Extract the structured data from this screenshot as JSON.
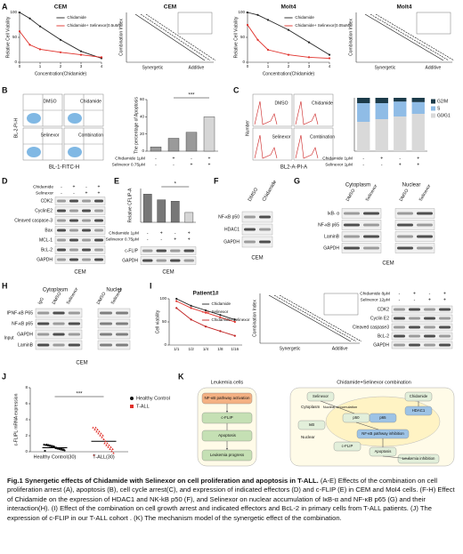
{
  "a": {
    "label": "A",
    "cem": {
      "type": "line",
      "title": "CEM",
      "x_label": "Concentration(Chidamide)",
      "y_label": "Relative Cell Viability",
      "x": [
        0,
        0.5,
        1,
        2,
        3,
        4
      ],
      "xlim": [
        0,
        4
      ],
      "xticks": [
        0,
        1,
        2,
        3,
        4
      ],
      "ylim": [
        0,
        100
      ],
      "yticks": [
        0,
        50,
        100
      ],
      "series": [
        {
          "name": "Chidamide",
          "color": "#222222",
          "values": [
            100,
            88,
            72,
            45,
            22,
            8
          ]
        },
        {
          "name": "Chidamide+ Selinexor(0.5uM)",
          "color": "#e0302a",
          "values": [
            62,
            35,
            26,
            20,
            15,
            10
          ]
        }
      ]
    },
    "cem_ci": {
      "title": "CEM",
      "y_label": "Combination Index",
      "left": "Synergetic",
      "right": "Additive"
    },
    "molt4": {
      "type": "line",
      "title": "Molt4",
      "x_label": "Concentration(Chidamide)",
      "y_label": "Relative Cell Viability",
      "x": [
        0,
        0.5,
        1,
        2,
        3,
        4
      ],
      "xlim": [
        0,
        4
      ],
      "xticks": [
        0,
        1,
        2,
        3,
        4
      ],
      "ylim": [
        0,
        100
      ],
      "yticks": [
        0,
        50,
        100
      ],
      "series": [
        {
          "name": "Chidamide",
          "color": "#222222",
          "values": [
            100,
            95,
            85,
            65,
            40,
            15
          ]
        },
        {
          "name": "Chidamide+ Selinexor(0.05uM)",
          "color": "#e0302a",
          "values": [
            75,
            45,
            25,
            15,
            10,
            8
          ]
        }
      ]
    },
    "molt4_ci": {
      "title": "Molt4",
      "y_label": "Combination Index",
      "left": "Synergetic",
      "right": "Additive"
    }
  },
  "b": {
    "label": "B",
    "y_axis": "BL-2-PI-H",
    "x_axis": "BL-1-FITC-H",
    "quadrants": [
      "DMSO",
      "Chidamide",
      "Selinexor",
      "Combination"
    ],
    "chart": {
      "type": "bar",
      "y_label": "The percentage of Apoptosis",
      "values": [
        5,
        15,
        22,
        40
      ],
      "color": "#9a9a9a",
      "ylim": [
        0,
        60
      ],
      "yticks": [
        0,
        20,
        40,
        60
      ],
      "significance": "***",
      "conditions": [
        {
          "name": "Chidamide 1μM",
          "signs": [
            "-",
            "+",
            "-",
            "+"
          ]
        },
        {
          "name": "Selinexor 0.75μM",
          "signs": [
            "-",
            "-",
            "+",
            "+"
          ]
        }
      ]
    }
  },
  "c": {
    "label": "C",
    "y_axis": "Number",
    "x_axis": "BL2-A-PI-A",
    "panels": [
      "DMSO",
      "Chidamide",
      "Selinexor",
      "Combination"
    ],
    "chart": {
      "type": "stacked_bar",
      "ylim": [
        0,
        100
      ],
      "series": [
        {
          "name": "G0/G1",
          "color": "#d9d9d9",
          "values": [
            55,
            60,
            65,
            70
          ]
        },
        {
          "name": "S",
          "color": "#8fbce6",
          "values": [
            35,
            30,
            28,
            22
          ]
        },
        {
          "name": "G2/M",
          "color": "#1c3b4a",
          "values": [
            10,
            10,
            7,
            8
          ]
        }
      ],
      "conditions": [
        {
          "name": "Chidamide 1μM",
          "signs": [
            "-",
            "+",
            "-",
            "+"
          ]
        },
        {
          "name": "Selinexor 1μM",
          "signs": [
            "-",
            "-",
            "+",
            "+"
          ]
        }
      ]
    }
  },
  "d": {
    "label": "D",
    "conditions": [
      {
        "name": "Chidamide",
        "signs": [
          "-",
          "+",
          "-",
          "+"
        ]
      },
      {
        "name": "Selinexor",
        "signs": [
          "-",
          "-",
          "+",
          "+"
        ]
      }
    ],
    "rows": [
      "CDK2",
      "CyclinE2",
      "Cleaved caspase-3",
      "Bax",
      "MCL-1",
      "BcL-2",
      "GAPDH"
    ],
    "cell": "CEM"
  },
  "e": {
    "label": "E",
    "chart": {
      "type": "bar",
      "y_label": "Relative CFLIP-A",
      "values": [
        1,
        0.8,
        0.75,
        0.35
      ],
      "color": "#777777",
      "ylim": [
        0,
        1.2
      ],
      "significance": "*"
    },
    "conditions": [
      {
        "name": "Chidamide 1μM",
        "signs": [
          "-",
          "+",
          "-",
          "+"
        ]
      },
      {
        "name": "Selinexor 0.75μM",
        "signs": [
          "-",
          "-",
          "+",
          "+"
        ]
      }
    ],
    "rows": [
      "c-FLIP",
      "GAPDH"
    ],
    "cell": "CEM"
  },
  "f": {
    "label": "F",
    "columns": [
      "DMSO",
      "Chidamide"
    ],
    "rows": [
      "NF-κB p50",
      "HDAC1",
      "GAPDH"
    ],
    "cell": "CEM"
  },
  "g": {
    "label": "G",
    "groups": [
      "Cytoplasm",
      "Nuclear"
    ],
    "columns": [
      "DMSO",
      "Selinexor",
      "DMSO",
      "Selinexor"
    ],
    "rows": [
      "IκB- α",
      "NF-κB p65",
      "LaminB",
      "GAPDH"
    ],
    "cell": "CEM"
  },
  "h": {
    "label": "H",
    "groups": [
      "Cytoplasm",
      "Nucler"
    ],
    "columns": [
      "IgG",
      "DMSO",
      "Selinexor",
      "DMSO",
      "Selinexor"
    ],
    "ip": "IP",
    "input": "Input",
    "rows": [
      "NF-κB P65",
      "NF-κB p65",
      "GAPDH",
      "LaminB"
    ],
    "cell": "CEM"
  },
  "i": {
    "label": "I",
    "chart": {
      "type": "line",
      "title": "Patient1#",
      "y_label": "Cell viability",
      "categories": [
        "1/1",
        "1/2",
        "1/4",
        "1/8",
        "1/16"
      ],
      "ylim": [
        0,
        100
      ],
      "yticks": [
        0,
        50,
        100
      ],
      "series": [
        {
          "name": "Chidamide",
          "color": "#222222",
          "values": [
            100,
            85,
            75,
            65,
            55
          ]
        },
        {
          "name": "Selinexor",
          "color": "#e0302a",
          "values": [
            95,
            80,
            70,
            60,
            50
          ]
        },
        {
          "name": "Chidamide+Selinexor",
          "color": "#c02020",
          "values": [
            80,
            55,
            40,
            30,
            20
          ]
        }
      ]
    },
    "ci": {
      "y_label": "Combination Index",
      "left": "Synergetic",
      "right": "Additive"
    },
    "conditions": [
      {
        "name": "Chidamide 8μM",
        "signs": [
          "-",
          "+",
          "-",
          "+"
        ]
      },
      {
        "name": "Selinexor 12μM",
        "signs": [
          "-",
          "-",
          "+",
          "+"
        ]
      }
    ],
    "rows": [
      "CDK2",
      "Cyclin E2",
      "Cleaved caspase3",
      "BcL-2",
      "GAPDH"
    ]
  },
  "j": {
    "label": "J",
    "chart": {
      "type": "scatter_mean",
      "y_label": "c-FLIPL mRNA expression",
      "categories": [
        "Healthy Control(30)",
        "T-ALL(30)"
      ],
      "values": [
        0.5,
        1.3
      ],
      "colors": [
        "#111111",
        "#e0302a"
      ],
      "ylim": [
        0,
        8
      ],
      "yticks": [
        0,
        2,
        4,
        6,
        8
      ],
      "significance": "***"
    },
    "legend": [
      "Healthy Control",
      "T-ALL"
    ]
  },
  "k": {
    "label": "K",
    "left_title": "Leukemia cells",
    "right_title": "Chidamide+Selinexor combination",
    "left_nodes": [
      "NF-κB pathway activation",
      "c-FLIP",
      "Apoptosis",
      "Leukemia progress"
    ],
    "right_nodes": [
      "Selinexor",
      "Chidamide",
      "HDAC1",
      "p50",
      "p65",
      "IκB",
      "NF-κB pathway inhibition",
      "c-FLIP",
      "Apoptosis",
      "Leukemia inhibition"
    ],
    "compartments": [
      "Cytoplasm",
      "Nuclear",
      "Nuclear accumulation"
    ]
  },
  "caption": {
    "title": "Fig.1 Synergetic effects of Chidamide with Selinexor on cell proliferation and apoptosis in T-ALL.",
    "text": "(A-E) Effects of the combination on cell proliferation arrest (A), apoptosis (B), cell cycle arrest(C), and expression of indicated effectors (D) and c-FLIP (E) in CEM and MoI4 cells. (F-H) Effect of Chidamide on the expression of HDAC1 and NK-kB p50 (F), and Selinexor on nuclear accumulation of IκB-α and NF-κB p65 (G) and their interaction(H). (I) Effect of the combination on cell growth arrest and indicated effectors and BcL-2 in primary cells from T-ALL patients. (J) The expression of c-FLIP in our T-ALL cohort . (K) The mechanism model of the synergetic effect of the combination."
  }
}
